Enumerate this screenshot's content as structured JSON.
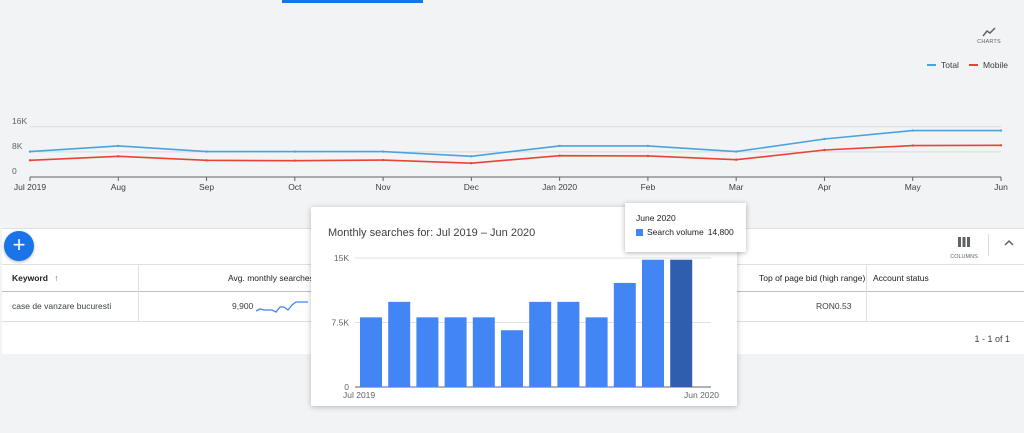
{
  "trend_chart": {
    "y_ticks": [
      "16K",
      "8K",
      "0"
    ],
    "x_ticks": [
      "Jul 2019",
      "Aug",
      "Sep",
      "Oct",
      "Nov",
      "Dec",
      "Jan 2020",
      "Feb",
      "Mar",
      "Apr",
      "May",
      "Jun"
    ],
    "charts_button_label": "CHARTS",
    "legend": [
      {
        "name": "Total",
        "color": "#4aa3df"
      },
      {
        "name": "Mobile",
        "color": "#ea4335"
      }
    ]
  },
  "chart_data": [
    {
      "type": "line",
      "x": [
        "Jul 2019",
        "Aug",
        "Sep",
        "Oct",
        "Nov",
        "Dec",
        "Jan 2020",
        "Feb",
        "Mar",
        "Apr",
        "May",
        "Jun"
      ],
      "series": [
        {
          "name": "Total",
          "color": "#4aa3df",
          "values": [
            8100,
            9900,
            8100,
            8100,
            8100,
            6600,
            9900,
            9900,
            8100,
            12100,
            14800,
            14800
          ]
        },
        {
          "name": "Mobile",
          "color": "#ea4335",
          "values": [
            5300,
            6600,
            5300,
            5200,
            5400,
            4400,
            6800,
            6700,
            5500,
            8600,
            10000,
            10100
          ]
        }
      ],
      "ylim": [
        0,
        18000
      ],
      "grid": true,
      "legend_position": "top-right"
    },
    {
      "type": "bar",
      "title": "Monthly searches for: Jul 2019 – Jun 2020",
      "categories": [
        "Jul 2019",
        "Aug",
        "Sep",
        "Oct",
        "Nov",
        "Dec",
        "Jan 2020",
        "Feb",
        "Mar",
        "Apr",
        "May",
        "Jun 2020"
      ],
      "values": [
        8100,
        9900,
        8100,
        8100,
        8100,
        6600,
        9900,
        9900,
        8100,
        12100,
        14800,
        14800
      ],
      "ylim": [
        0,
        15000
      ],
      "y_ticks": [
        "15K",
        "7.5K",
        "0"
      ],
      "x_tick_labels": [
        "Jul 2019",
        "Jun 2020"
      ],
      "bar_color": "#4285f4",
      "highlight_color": "#2f5eaf",
      "highlight_index": 11
    }
  ],
  "popup": {
    "title": "Monthly searches for: Jul 2019 – Jun 2020"
  },
  "tooltip": {
    "month": "June 2020",
    "label": "Search volume",
    "value": "14,800"
  },
  "toolbar": {
    "add_icon": "plus-icon",
    "columns_label": "COLUMNS"
  },
  "table": {
    "headers": {
      "keyword": "Keyword",
      "avg_monthly": "Avg. monthly searches",
      "top_bid_high": "Top of page bid (high range)",
      "account_status": "Account status"
    },
    "rows": [
      {
        "keyword": "case de vanzare bucuresti",
        "avg_monthly": "9,900",
        "top_bid_high": "RON0.53",
        "account_status": ""
      }
    ],
    "pagination": "1 - 1 of 1"
  }
}
